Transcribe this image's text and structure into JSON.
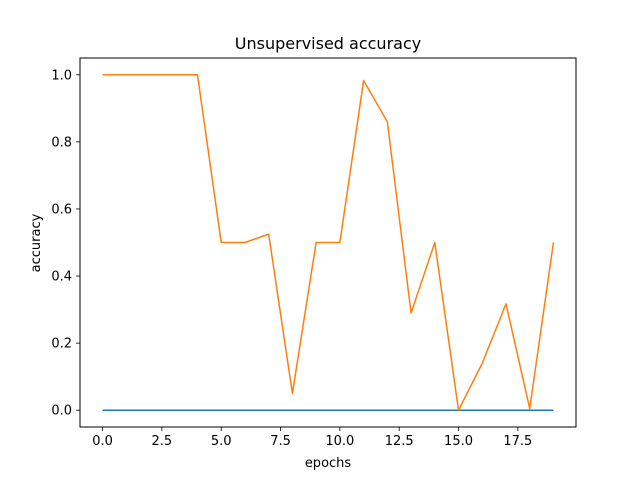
{
  "chart_data": {
    "type": "line",
    "title": "Unsupervised accuracy",
    "xlabel": "epochs",
    "ylabel": "accuracy",
    "xlim": [
      -0.95,
      19.95
    ],
    "ylim": [
      -0.05,
      1.05
    ],
    "x_ticks": [
      "0.0",
      "2.5",
      "5.0",
      "7.5",
      "10.0",
      "12.5",
      "15.0",
      "17.5"
    ],
    "y_ticks": [
      "0.0",
      "0.2",
      "0.4",
      "0.6",
      "0.8",
      "1.0"
    ],
    "grid": false,
    "legend": "none",
    "x": [
      0,
      1,
      2,
      3,
      4,
      5,
      6,
      7,
      8,
      9,
      10,
      11,
      12,
      13,
      14,
      15,
      16,
      17,
      18,
      19
    ],
    "series": [
      {
        "color": "#1f77b4",
        "values": [
          0,
          0,
          0,
          0,
          0,
          0,
          0,
          0,
          0,
          0,
          0,
          0,
          0,
          0,
          0,
          0,
          0,
          0,
          0,
          0
        ]
      },
      {
        "color": "#ff7f0e",
        "values": [
          1.0,
          1.0,
          1.0,
          1.0,
          1.0,
          0.5,
          0.5,
          0.525,
          0.05,
          0.5,
          0.5,
          0.983,
          0.86,
          0.29,
          0.5,
          0.0,
          0.14,
          0.317,
          0.005,
          0.5
        ]
      }
    ]
  }
}
